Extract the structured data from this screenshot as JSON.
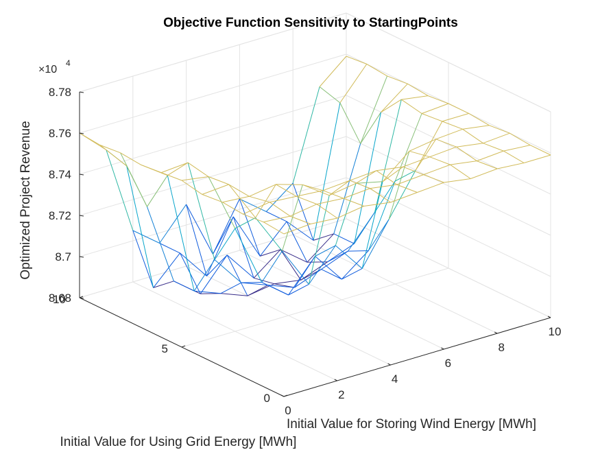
{
  "chart_data": {
    "type": "surface-mesh",
    "title": "Objective Function Sensitivity to StartingPoints",
    "xlabel": "Initial Value for Storing Wind Energy [MWh]",
    "ylabel": "Initial Value for Using Grid Energy [MWh]",
    "zlabel": "Optimized Project Revenue",
    "z_multiplier_label": "×10",
    "z_multiplier_exponent": "4",
    "xlim": [
      0,
      10
    ],
    "ylim": [
      0,
      10
    ],
    "zlim": [
      86800,
      87800
    ],
    "x_ticks": [
      "0",
      "2",
      "4",
      "6",
      "8",
      "10"
    ],
    "y_ticks": [
      "0",
      "5",
      "10"
    ],
    "z_ticks": [
      "8.68",
      "8.7",
      "8.72",
      "8.74",
      "8.76",
      "8.78"
    ],
    "grid": true,
    "colormap": [
      "#352a87",
      "#0f5cdd",
      "#1481d6",
      "#06a4ca",
      "#2eb7a4",
      "#87bf77",
      "#d1bb59",
      "#fec832",
      "#f9fb0e"
    ],
    "x": [
      0,
      1,
      2,
      3,
      4,
      5,
      6,
      7,
      8,
      9,
      10
    ],
    "y": [
      0,
      1,
      2,
      3,
      4,
      5,
      6,
      7,
      8,
      9,
      10
    ],
    "z": [
      [
        87590,
        87600,
        87590,
        87610,
        87590,
        87600,
        87610,
        87590,
        87600,
        87590,
        87590
      ],
      [
        87600,
        87590,
        87610,
        87600,
        87610,
        87590,
        87600,
        87610,
        87590,
        87600,
        87590
      ],
      [
        87590,
        87610,
        87600,
        87590,
        87600,
        87610,
        87590,
        87600,
        87610,
        87590,
        87600
      ],
      [
        87600,
        87590,
        87610,
        87570,
        87480,
        87500,
        87470,
        87580,
        87600,
        87610,
        87590
      ],
      [
        87590,
        87600,
        87400,
        87200,
        87000,
        87150,
        87000,
        87200,
        87400,
        87600,
        87600
      ],
      [
        87610,
        87590,
        87300,
        87000,
        86900,
        87050,
        86900,
        87000,
        87300,
        87590,
        87600
      ],
      [
        87600,
        87610,
        87100,
        86950,
        86900,
        86850,
        86900,
        86950,
        87100,
        87610,
        87590
      ],
      [
        87590,
        87500,
        86900,
        86850,
        86800,
        86820,
        86800,
        86850,
        86900,
        87500,
        87600
      ],
      [
        87600,
        87300,
        86900,
        86800,
        86950,
        86800,
        86900,
        86800,
        86900,
        87300,
        87590
      ],
      [
        87590,
        87450,
        86820,
        86950,
        86800,
        87050,
        86820,
        86950,
        86820,
        87450,
        87600
      ],
      [
        87600,
        87480,
        87050,
        86950,
        87100,
        86820,
        87050,
        86950,
        87050,
        87480,
        87590
      ]
    ]
  }
}
